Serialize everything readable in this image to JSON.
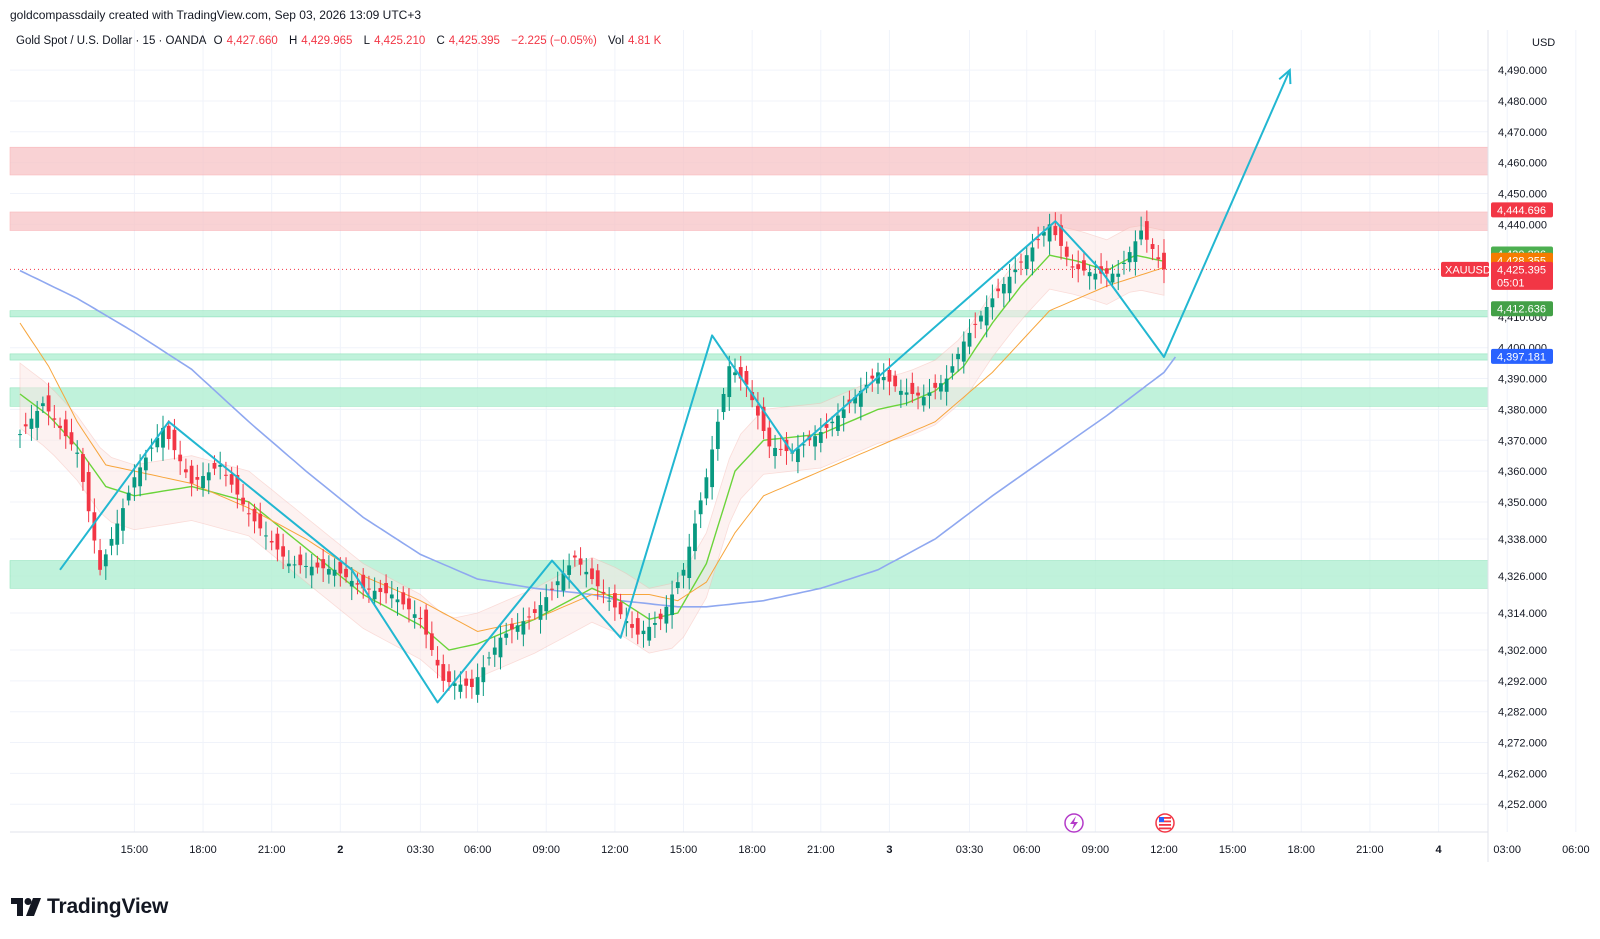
{
  "header": {
    "creator_line": "goldcompassdaily created with TradingView.com, Sep 03, 2026 13:09 UTC+3",
    "symbol_line": "Gold Spot / U.S. Dollar · 15 · OANDA",
    "ohlc": {
      "o_label": "O",
      "o_value": "4,427.660",
      "h_label": "H",
      "h_value": "4,429.965",
      "l_label": "L",
      "l_value": "4,425.210",
      "c_label": "C",
      "c_value": "4,425.395",
      "change": "−2.225 (−0.05%)",
      "vol_label": "Vol",
      "vol_value": "4.81 K"
    },
    "currency": "USD"
  },
  "brand": {
    "name": "TradingView"
  },
  "colors": {
    "up": "#089981",
    "down": "#f23645",
    "ma_slow": "#8fa8f0",
    "ma_fast": "#6ad43a",
    "ma_mid": "#f7a53c",
    "zigzag": "#22b7d1",
    "resistance_zone": "#f7c4c6",
    "support_zone": "#b6f0d5",
    "price_tag": "#f23645",
    "blue_tag": "#2962ff"
  },
  "chart_data": {
    "type": "candlestick",
    "symbol": "XAUUSD",
    "interval": "15",
    "ylim": [
      4243,
      4503
    ],
    "y_ticks": [
      4252,
      4262,
      4272,
      4282,
      4292,
      4302,
      4314,
      4326,
      4338,
      4350,
      4360,
      4370,
      4380,
      4390,
      4400,
      4410,
      4440,
      4450,
      4460,
      4470,
      4480,
      4490
    ],
    "y_tick_labels": [
      "4,252.000",
      "4,262.000",
      "4,272.000",
      "4,282.000",
      "4,292.000",
      "4,302.000",
      "4,314.000",
      "4,326.000",
      "4,338.000",
      "4,350.000",
      "4,360.000",
      "4,370.000",
      "4,380.000",
      "4,390.000",
      "4,400.000",
      "4,410.000",
      "4,440.000",
      "4,450.000",
      "4,460.000",
      "4,470.000",
      "4,480.000",
      "4,490.000"
    ],
    "x_ticks": [
      {
        "label": "15:00",
        "bar": 20,
        "bold": false
      },
      {
        "label": "18:00",
        "bar": 32,
        "bold": false
      },
      {
        "label": "21:00",
        "bar": 44,
        "bold": false
      },
      {
        "label": "2",
        "bar": 56,
        "bold": true
      },
      {
        "label": "03:30",
        "bar": 70,
        "bold": false
      },
      {
        "label": "06:00",
        "bar": 80,
        "bold": false
      },
      {
        "label": "09:00",
        "bar": 92,
        "bold": false
      },
      {
        "label": "12:00",
        "bar": 104,
        "bold": false
      },
      {
        "label": "15:00",
        "bar": 116,
        "bold": false
      },
      {
        "label": "18:00",
        "bar": 128,
        "bold": false
      },
      {
        "label": "21:00",
        "bar": 140,
        "bold": false
      },
      {
        "label": "3",
        "bar": 152,
        "bold": true
      },
      {
        "label": "03:30",
        "bar": 166,
        "bold": false
      },
      {
        "label": "06:00",
        "bar": 176,
        "bold": false
      },
      {
        "label": "09:00",
        "bar": 188,
        "bold": false
      },
      {
        "label": "12:00",
        "bar": 200,
        "bold": false
      },
      {
        "label": "15:00",
        "bar": 212,
        "bold": false
      },
      {
        "label": "18:00",
        "bar": 224,
        "bold": false
      },
      {
        "label": "21:00",
        "bar": 236,
        "bold": false
      },
      {
        "label": "4",
        "bar": 248,
        "bold": true
      },
      {
        "label": "03:00",
        "bar": 260,
        "bold": false
      },
      {
        "label": "06:00",
        "bar": 272,
        "bold": false
      }
    ],
    "close_anchors": [
      [
        0,
        4372
      ],
      [
        4,
        4382
      ],
      [
        10,
        4366
      ],
      [
        14,
        4328
      ],
      [
        20,
        4358
      ],
      [
        25,
        4374
      ],
      [
        30,
        4356
      ],
      [
        35,
        4362
      ],
      [
        40,
        4346
      ],
      [
        47,
        4330
      ],
      [
        55,
        4328
      ],
      [
        60,
        4322
      ],
      [
        65,
        4320
      ],
      [
        70,
        4312
      ],
      [
        74,
        4292
      ],
      [
        79,
        4290
      ],
      [
        84,
        4306
      ],
      [
        90,
        4314
      ],
      [
        97,
        4332
      ],
      [
        103,
        4318
      ],
      [
        108,
        4307
      ],
      [
        112,
        4312
      ],
      [
        116,
        4328
      ],
      [
        120,
        4358
      ],
      [
        124,
        4394
      ],
      [
        127,
        4388
      ],
      [
        131,
        4368
      ],
      [
        135,
        4366
      ],
      [
        141,
        4374
      ],
      [
        146,
        4384
      ],
      [
        150,
        4392
      ],
      [
        154,
        4386
      ],
      [
        158,
        4384
      ],
      [
        162,
        4390
      ],
      [
        165,
        4402
      ],
      [
        170,
        4416
      ],
      [
        176,
        4430
      ],
      [
        180,
        4440
      ],
      [
        184,
        4426
      ],
      [
        188,
        4424
      ],
      [
        192,
        4424
      ],
      [
        196,
        4438
      ],
      [
        198,
        4432
      ],
      [
        200,
        4425.395
      ]
    ],
    "series": [
      {
        "name": "MA slow",
        "points": [
          [
            0,
            4425
          ],
          [
            10,
            4416
          ],
          [
            20,
            4405
          ],
          [
            30,
            4393
          ],
          [
            40,
            4376
          ],
          [
            50,
            4360
          ],
          [
            60,
            4345
          ],
          [
            70,
            4333
          ],
          [
            80,
            4325
          ],
          [
            90,
            4322
          ],
          [
            100,
            4320
          ],
          [
            105,
            4318
          ],
          [
            110,
            4317
          ],
          [
            115,
            4316
          ],
          [
            120,
            4316
          ],
          [
            130,
            4318
          ],
          [
            140,
            4322
          ],
          [
            150,
            4328
          ],
          [
            160,
            4338
          ],
          [
            170,
            4352
          ],
          [
            180,
            4365
          ],
          [
            190,
            4378
          ],
          [
            200,
            4392
          ],
          [
            202,
            4397
          ]
        ]
      },
      {
        "name": "MA fast",
        "points": [
          [
            0,
            4385
          ],
          [
            5,
            4378
          ],
          [
            10,
            4368
          ],
          [
            15,
            4355
          ],
          [
            20,
            4352
          ],
          [
            30,
            4355
          ],
          [
            40,
            4350
          ],
          [
            50,
            4335
          ],
          [
            60,
            4320
          ],
          [
            70,
            4310
          ],
          [
            75,
            4302
          ],
          [
            80,
            4304
          ],
          [
            90,
            4312
          ],
          [
            100,
            4322
          ],
          [
            105,
            4318
          ],
          [
            110,
            4312
          ],
          [
            115,
            4314
          ],
          [
            120,
            4330
          ],
          [
            125,
            4360
          ],
          [
            130,
            4370
          ],
          [
            140,
            4372
          ],
          [
            150,
            4380
          ],
          [
            155,
            4382
          ],
          [
            160,
            4386
          ],
          [
            165,
            4394
          ],
          [
            170,
            4408
          ],
          [
            175,
            4420
          ],
          [
            180,
            4430
          ],
          [
            185,
            4428
          ],
          [
            190,
            4425
          ],
          [
            195,
            4430
          ],
          [
            200,
            4428
          ]
        ]
      },
      {
        "name": "MA mid",
        "points": [
          [
            0,
            4408
          ],
          [
            5,
            4394
          ],
          [
            10,
            4376
          ],
          [
            15,
            4362
          ],
          [
            20,
            4360
          ],
          [
            30,
            4356
          ],
          [
            40,
            4348
          ],
          [
            50,
            4338
          ],
          [
            60,
            4326
          ],
          [
            70,
            4318
          ],
          [
            80,
            4308
          ],
          [
            90,
            4312
          ],
          [
            100,
            4320
          ],
          [
            110,
            4320
          ],
          [
            115,
            4318
          ],
          [
            120,
            4324
          ],
          [
            125,
            4340
          ],
          [
            130,
            4352
          ],
          [
            140,
            4360
          ],
          [
            150,
            4368
          ],
          [
            160,
            4376
          ],
          [
            170,
            4392
          ],
          [
            180,
            4412
          ],
          [
            190,
            4420
          ],
          [
            200,
            4426
          ]
        ]
      }
    ],
    "zones": [
      {
        "type": "resistance",
        "from": 4456,
        "to": 4465
      },
      {
        "type": "resistance",
        "from": 4438,
        "to": 4444
      },
      {
        "type": "support",
        "from": 4410,
        "to": 4412
      },
      {
        "type": "support",
        "from": 4396,
        "to": 4398
      },
      {
        "type": "support",
        "from": 4381,
        "to": 4387
      },
      {
        "type": "support",
        "from": 4322,
        "to": 4331
      }
    ],
    "zigzag": [
      [
        7,
        4328
      ],
      [
        26,
        4376
      ],
      [
        58,
        4328
      ],
      [
        73,
        4285
      ],
      [
        93,
        4331
      ],
      [
        105,
        4306
      ],
      [
        121,
        4404
      ],
      [
        135,
        4366
      ],
      [
        181,
        4441
      ],
      [
        189,
        4425
      ],
      [
        200,
        4397
      ],
      [
        222,
        4490
      ]
    ],
    "price_tags": [
      {
        "label": "4,444.696",
        "value": 4444.696,
        "color": "#f23645"
      },
      {
        "label": "4,430.386",
        "value": 4430.386,
        "color": "#4caf50"
      },
      {
        "label": "4,428.355",
        "value": 4428.355,
        "color": "#f57c00"
      },
      {
        "label": "4,425.395",
        "value": 4425.395,
        "color": "#f23645",
        "sub": "05:01",
        "symbol": "XAUUSD"
      },
      {
        "label": "4,412.636",
        "value": 4412.636,
        "color": "#43a047"
      },
      {
        "label": "4,397.181",
        "value": 4397.181,
        "color": "#2962ff"
      }
    ],
    "grid": true
  }
}
